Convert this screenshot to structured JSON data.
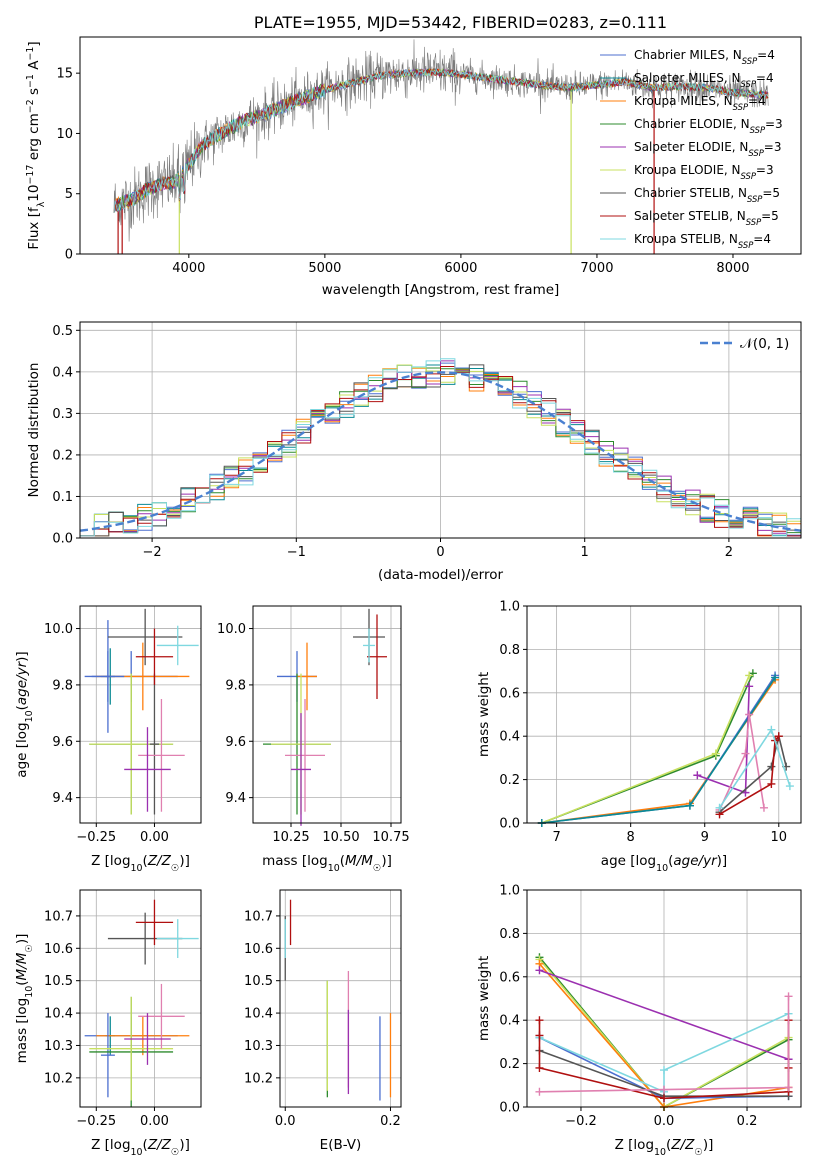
{
  "chart_data": [
    {
      "type": "line",
      "title": "PLATE=1955, MJD=53442, FIBERID=0283, z=0.111",
      "xlabel": "wavelength [Angstrom, rest frame]",
      "ylabel": "Flux [fλ10⁻¹⁷ erg cm⁻² s⁻¹ A⁻¹]",
      "xlim": [
        3200,
        8500
      ],
      "ylim": [
        0,
        18
      ],
      "xticks": [
        "4000",
        "5000",
        "6000",
        "7000",
        "8000"
      ],
      "yticks": [
        "0",
        "5",
        "10",
        "15"
      ],
      "grid": false,
      "legend_position": "upper-right",
      "series": [
        {
          "name": "Chabrier MILES, N_SSP=4",
          "color": "#4c6fcf"
        },
        {
          "name": "Salpeter MILES, N_SSP=4",
          "color": "#0b8a94"
        },
        {
          "name": "Kroupa MILES, N_SSP=4",
          "color": "#ff7f0e"
        },
        {
          "name": "Chabrier ELODIE, N_SSP=3",
          "color": "#2e8b2e"
        },
        {
          "name": "Salpeter ELODIE, N_SSP=3",
          "color": "#9b30b0"
        },
        {
          "name": "Kroupa ELODIE, N_SSP=3",
          "color": "#c8e060"
        },
        {
          "name": "Chabrier STELIB, N_SSP=5",
          "color": "#555555"
        },
        {
          "name": "Salpeter STELIB, N_SSP=5",
          "color": "#b01010"
        },
        {
          "name": "Kroupa STELIB, N_SSP=4",
          "color": "#7fd8e0"
        }
      ],
      "continuum": {
        "x": [
          3450,
          3600,
          3700,
          3800,
          3900,
          4000,
          4100,
          4200,
          4400,
          4600,
          4800,
          5000,
          5200,
          5400,
          5600,
          5800,
          6000,
          6200,
          6400,
          6600,
          6800,
          7000,
          7200,
          7400,
          7600,
          7800,
          8000,
          8250
        ],
        "y": [
          4.0,
          4.6,
          5.4,
          5.8,
          6.0,
          7.5,
          9.0,
          9.8,
          11.0,
          11.8,
          12.8,
          13.6,
          14.2,
          14.8,
          15.0,
          15.1,
          14.9,
          14.6,
          14.3,
          14.0,
          13.8,
          14.0,
          14.3,
          13.8,
          13.9,
          13.8,
          13.4,
          13.2
        ]
      }
    },
    {
      "type": "line",
      "xlabel": "(data-model)/error",
      "ylabel": "Normed distribution",
      "xlim": [
        -2.5,
        2.5
      ],
      "ylim": [
        0,
        0.52
      ],
      "xticks": [
        "−2",
        "−1",
        "0",
        "1",
        "2"
      ],
      "yticks": [
        "0.0",
        "0.1",
        "0.2",
        "0.3",
        "0.4",
        "0.5"
      ],
      "grid": true,
      "legend": "𝒩(0, 1)",
      "legend_position": "upper-right",
      "reference_curve": {
        "name": "𝒩(0, 1)",
        "mean": 0,
        "sigma": 1,
        "color": "#4a80d0",
        "style": "dashed"
      }
    },
    {
      "type": "scatter",
      "xlabel": "Z [log₁₀(Z/Z☉)]",
      "ylabel": "age  [log₁₀(age/yr)]",
      "xlim": [
        -0.32,
        0.2
      ],
      "ylim": [
        9.31,
        10.08
      ],
      "xticks": [
        "−0.25",
        "0.00"
      ],
      "yticks": [
        "9.4",
        "9.6",
        "9.8",
        "10.0"
      ],
      "grid": true,
      "points": [
        {
          "x": -0.1,
          "xerr": 0.2,
          "y": 9.83,
          "yerr": 0.09,
          "color": "#4c6fcf"
        },
        {
          "x": -0.19,
          "xerr": 0.02,
          "y": 9.83,
          "yerr": 0.1,
          "color": "#0b8a94"
        },
        {
          "x": -0.05,
          "xerr": 0.2,
          "y": 9.83,
          "yerr": 0.12,
          "color": "#ff7f0e"
        },
        {
          "x": -0.2,
          "xerr": 0.07,
          "y": 9.83,
          "yerr": 0.2,
          "color": "#4c6fcf"
        },
        {
          "x": -0.2,
          "xerr": 0.03,
          "y": 9.83,
          "yerr": 0.09,
          "color": "#4c6fcf"
        },
        {
          "x": -0.1,
          "xerr": 0.18,
          "y": 9.59,
          "yerr": 0.25,
          "color": "#2e8b2e"
        },
        {
          "x": -0.1,
          "xerr": 0.18,
          "y": 9.59,
          "yerr": 0.25,
          "color": "#c8e060"
        },
        {
          "x": 0.0,
          "xerr": 0.02,
          "y": 9.59,
          "yerr": 0.25,
          "color": "#555555"
        },
        {
          "x": 0.03,
          "xerr": 0.1,
          "y": 9.55,
          "yerr": 0.2,
          "color": "#e080b0"
        },
        {
          "x": -0.03,
          "xerr": 0.1,
          "y": 9.5,
          "yerr": 0.15,
          "color": "#9b30b0"
        },
        {
          "x": -0.04,
          "xerr": 0.16,
          "y": 9.97,
          "yerr": 0.1,
          "color": "#555555"
        },
        {
          "x": 0.0,
          "xerr": 0.08,
          "y": 9.9,
          "yerr": 0.1,
          "color": "#b01010"
        },
        {
          "x": 0.1,
          "xerr": 0.09,
          "y": 9.94,
          "yerr": 0.07,
          "color": "#7fd8e0"
        }
      ]
    },
    {
      "type": "scatter",
      "xlabel": "mass [log₁₀(M/M☉)]",
      "xlim": [
        10.06,
        10.8
      ],
      "ylim": [
        9.31,
        10.08
      ],
      "xticks": [
        "10.25",
        "10.50",
        "10.75"
      ],
      "yticks": [
        "9.4",
        "9.6",
        "9.8",
        "10.0"
      ],
      "grid": true,
      "points": [
        {
          "x": 10.28,
          "xerr": 0.1,
          "y": 9.83,
          "yerr": 0.09,
          "color": "#4c6fcf"
        },
        {
          "x": 10.33,
          "xerr": 0.05,
          "y": 9.83,
          "yerr": 0.12,
          "color": "#ff7f0e"
        },
        {
          "x": 10.28,
          "xerr": 0.17,
          "y": 9.59,
          "yerr": 0.25,
          "color": "#2e8b2e"
        },
        {
          "x": 10.3,
          "xerr": 0.15,
          "y": 9.59,
          "yerr": 0.25,
          "color": "#c8e060"
        },
        {
          "x": 10.32,
          "xerr": 0.1,
          "y": 9.55,
          "yerr": 0.2,
          "color": "#e080b0"
        },
        {
          "x": 10.3,
          "xerr": 0.05,
          "y": 9.5,
          "yerr": 0.2,
          "color": "#9b30b0"
        },
        {
          "x": 10.64,
          "xerr": 0.08,
          "y": 9.97,
          "yerr": 0.1,
          "color": "#555555"
        },
        {
          "x": 10.68,
          "xerr": 0.05,
          "y": 9.9,
          "yerr": 0.15,
          "color": "#b01010"
        },
        {
          "x": 10.64,
          "xerr": 0.03,
          "y": 9.94,
          "yerr": 0.06,
          "color": "#7fd8e0"
        }
      ]
    },
    {
      "type": "line",
      "xlabel": "age  [log₁₀(age/yr)]",
      "ylabel": "mass weight",
      "xlim": [
        6.6,
        10.3
      ],
      "ylim": [
        0,
        1
      ],
      "xticks": [
        "7",
        "8",
        "9",
        "10"
      ],
      "yticks": [
        "0.0",
        "0.2",
        "0.4",
        "0.6",
        "0.8",
        "1.0"
      ],
      "grid": true,
      "series": [
        {
          "color": "#2e8b2e",
          "x": [
            6.8,
            9.15,
            9.65
          ],
          "y": [
            0.0,
            0.31,
            0.69
          ]
        },
        {
          "color": "#c8e060",
          "x": [
            6.8,
            9.15,
            9.6
          ],
          "y": [
            0.0,
            0.32,
            0.68
          ]
        },
        {
          "color": "#ff7f0e",
          "x": [
            6.8,
            8.8,
            9.95
          ],
          "y": [
            0.0,
            0.09,
            0.66
          ]
        },
        {
          "color": "#4c6fcf",
          "x": [
            6.8,
            8.8,
            9.95
          ],
          "y": [
            0.0,
            0.08,
            0.68
          ]
        },
        {
          "color": "#0b8a94",
          "x": [
            6.8,
            8.8,
            9.95
          ],
          "y": [
            0.0,
            0.08,
            0.67
          ]
        },
        {
          "color": "#9b30b0",
          "x": [
            8.9,
            9.55,
            9.6
          ],
          "y": [
            0.22,
            0.14,
            0.63
          ]
        },
        {
          "color": "#e080b0",
          "x": [
            9.2,
            9.55,
            9.6,
            9.8
          ],
          "y": [
            0.06,
            0.32,
            0.5,
            0.07
          ]
        },
        {
          "color": "#555555",
          "x": [
            9.2,
            9.9,
            10.0,
            10.1
          ],
          "y": [
            0.05,
            0.26,
            0.4,
            0.26
          ]
        },
        {
          "color": "#b01010",
          "x": [
            9.2,
            9.9,
            9.95,
            10.0
          ],
          "y": [
            0.04,
            0.18,
            0.38,
            0.4
          ]
        },
        {
          "color": "#7fd8e0",
          "x": [
            9.2,
            9.9,
            10.15
          ],
          "y": [
            0.07,
            0.43,
            0.17
          ]
        }
      ]
    },
    {
      "type": "scatter",
      "xlabel": "Z [log₁₀(Z/Z☉)]",
      "ylabel": "mass [log₁₀(M/M☉)]",
      "xlim": [
        -0.32,
        0.2
      ],
      "ylim": [
        10.11,
        10.78
      ],
      "xticks": [
        "−0.25",
        "0.00"
      ],
      "yticks": [
        "10.2",
        "10.3",
        "10.4",
        "10.5",
        "10.6",
        "10.7"
      ],
      "grid": true,
      "points": [
        {
          "x": -0.1,
          "xerr": 0.2,
          "y": 10.33,
          "yerr": 0.06,
          "color": "#4c6fcf"
        },
        {
          "x": -0.19,
          "xerr": 0.02,
          "y": 10.33,
          "yerr": 0.06,
          "color": "#0b8a94"
        },
        {
          "x": -0.05,
          "xerr": 0.2,
          "y": 10.33,
          "yerr": 0.06,
          "color": "#ff7f0e"
        },
        {
          "x": -0.2,
          "xerr": 0.03,
          "y": 10.27,
          "yerr": 0.13,
          "color": "#4c6fcf"
        },
        {
          "x": -0.1,
          "xerr": 0.18,
          "y": 10.28,
          "yerr": 0.17,
          "color": "#2e8b2e"
        },
        {
          "x": -0.1,
          "xerr": 0.18,
          "y": 10.29,
          "yerr": 0.16,
          "color": "#c8e060"
        },
        {
          "x": 0.03,
          "xerr": 0.1,
          "y": 10.39,
          "yerr": 0.1,
          "color": "#e080b0"
        },
        {
          "x": -0.03,
          "xerr": 0.1,
          "y": 10.32,
          "yerr": 0.08,
          "color": "#9b30b0"
        },
        {
          "x": -0.04,
          "xerr": 0.16,
          "y": 10.63,
          "yerr": 0.08,
          "color": "#555555"
        },
        {
          "x": 0.0,
          "xerr": 0.08,
          "y": 10.68,
          "yerr": 0.07,
          "color": "#b01010"
        },
        {
          "x": 0.1,
          "xerr": 0.09,
          "y": 10.63,
          "yerr": 0.06,
          "color": "#7fd8e0"
        }
      ]
    },
    {
      "type": "scatter",
      "xlabel": "E(B-V)",
      "xlim": [
        -0.01,
        0.22
      ],
      "ylim": [
        10.11,
        10.78
      ],
      "xticks": [
        "0.0",
        "0.2"
      ],
      "yticks": [
        "10.2",
        "10.3",
        "10.4",
        "10.5",
        "10.6",
        "10.7"
      ],
      "grid": true,
      "points": [
        {
          "x": 0.0,
          "y": 10.6,
          "yerr": 0.1,
          "color": "#555555"
        },
        {
          "x": 0.01,
          "y": 10.68,
          "yerr": 0.07,
          "color": "#b01010"
        },
        {
          "x": 0.0,
          "y": 10.63,
          "yerr": 0.06,
          "color": "#7fd8e0"
        },
        {
          "x": 0.08,
          "y": 10.32,
          "yerr": 0.18,
          "color": "#2e8b2e"
        },
        {
          "x": 0.08,
          "y": 10.33,
          "yerr": 0.17,
          "color": "#c8e060"
        },
        {
          "x": 0.12,
          "y": 10.35,
          "yerr": 0.18,
          "color": "#e080b0"
        },
        {
          "x": 0.12,
          "y": 10.28,
          "yerr": 0.13,
          "color": "#9b30b0"
        },
        {
          "x": 0.18,
          "y": 10.26,
          "yerr": 0.13,
          "color": "#4c6fcf"
        },
        {
          "x": 0.2,
          "y": 10.27,
          "yerr": 0.13,
          "color": "#ff7f0e"
        }
      ]
    },
    {
      "type": "line",
      "xlabel": "Z [log₁₀(Z/Z☉)]",
      "ylabel": "mass weight",
      "xlim": [
        -0.33,
        0.33
      ],
      "ylim": [
        0,
        1
      ],
      "xticks": [
        "−0.2",
        "0.0",
        "0.2"
      ],
      "yticks": [
        "0.0",
        "0.2",
        "0.4",
        "0.6",
        "0.8",
        "1.0"
      ],
      "grid": true,
      "series": [
        {
          "color": "#2e8b2e",
          "x": [
            -0.3,
            0.0,
            0.3
          ],
          "y": [
            0.69,
            0.0,
            0.31
          ]
        },
        {
          "color": "#c8e060",
          "x": [
            -0.3,
            0.0,
            0.3
          ],
          "y": [
            0.68,
            0.0,
            0.32
          ]
        },
        {
          "color": "#ff7f0e",
          "x": [
            -0.3,
            0.0,
            0.3
          ],
          "y": [
            0.66,
            0.0,
            0.09
          ]
        },
        {
          "color": "#9b30b0",
          "x": [
            -0.3,
            0.3
          ],
          "y": [
            0.63,
            0.22
          ]
        },
        {
          "color": "#4c6fcf",
          "x": [
            -0.3,
            0.0,
            0.3
          ],
          "y": [
            0.32,
            0.04,
            0.05
          ]
        },
        {
          "color": "#7fd8e0",
          "x": [
            -0.3,
            0.0,
            0.0,
            0.3
          ],
          "y": [
            0.32,
            0.07,
            0.17,
            0.43
          ]
        },
        {
          "color": "#555555",
          "x": [
            -0.3,
            0.0,
            0.3
          ],
          "y": [
            0.26,
            0.05,
            0.05
          ]
        },
        {
          "color": "#b01010",
          "x": [
            -0.3,
            -0.3,
            -0.3,
            0.0,
            0.3,
            0.3,
            0.3
          ],
          "y": [
            0.4,
            0.33,
            0.18,
            0.04,
            0.07,
            0.18,
            0.4
          ]
        },
        {
          "color": "#e080b0",
          "x": [
            -0.3,
            0.0,
            0.3,
            0.3
          ],
          "y": [
            0.07,
            0.08,
            0.09,
            0.51
          ]
        }
      ]
    }
  ]
}
